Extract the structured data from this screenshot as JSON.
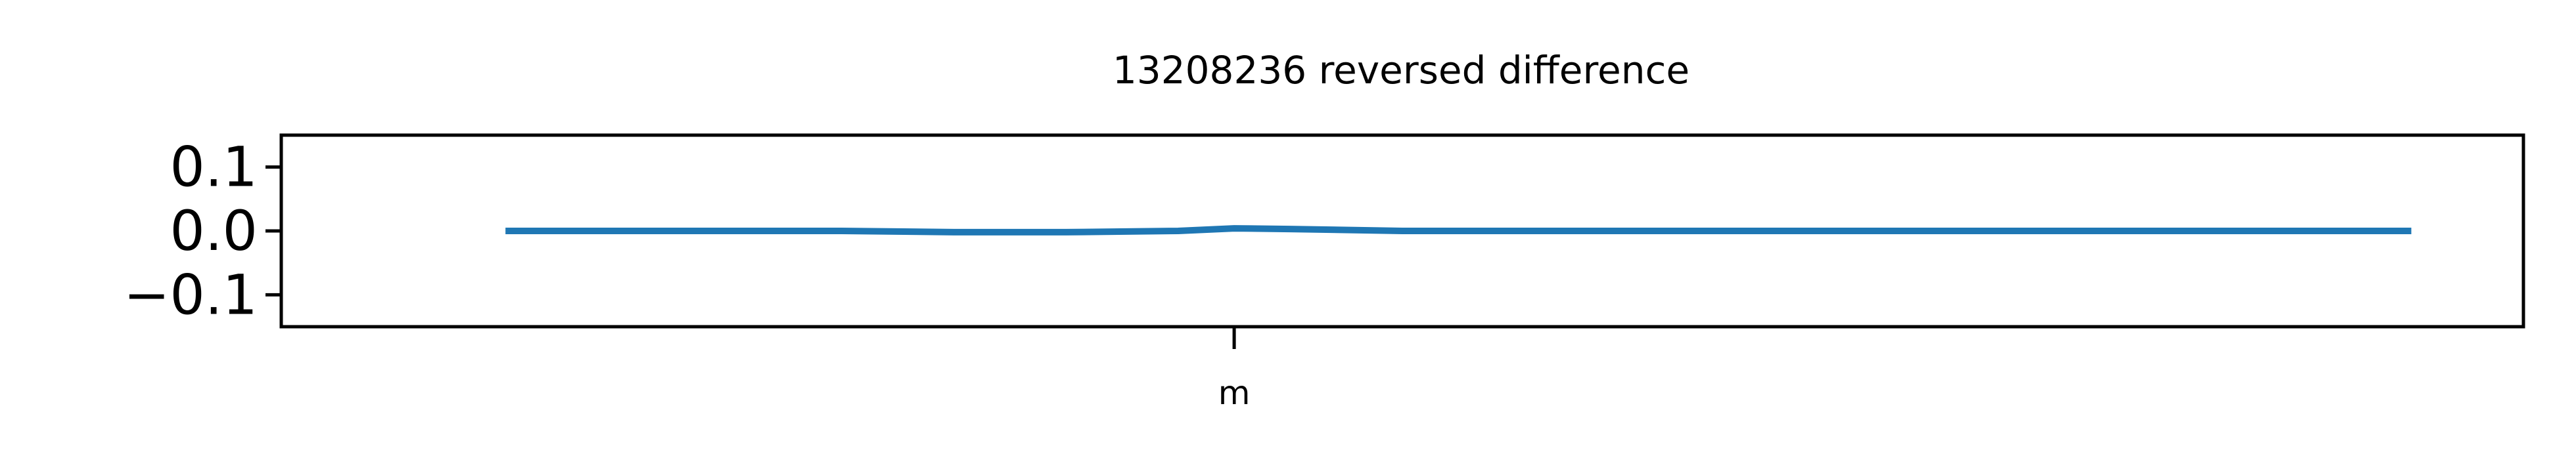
{
  "chart_data": {
    "type": "line",
    "title": "13208236 reversed difference",
    "xlabel": "",
    "ylabel": "",
    "ylim": [
      -0.15,
      0.15
    ],
    "yticks": [
      -0.1,
      0.0,
      0.1
    ],
    "ytick_labels": [
      "−0.1",
      "0.0",
      "0.1"
    ],
    "xlim": [
      0,
      100
    ],
    "xticks": [
      42.5
    ],
    "xtick_labels": [
      "m"
    ],
    "grid": false,
    "line_color": "#1f77b4",
    "series": [
      {
        "x": [
          10,
          15,
          20,
          25,
          30,
          35,
          40,
          42.5,
          45,
          50,
          55,
          60,
          65,
          70,
          75,
          80,
          85,
          90,
          95
        ],
        "y": [
          0.0,
          0.0,
          0.0,
          0.0,
          -0.002,
          -0.002,
          0.0,
          0.004,
          0.003,
          0.0,
          0.0,
          0.0,
          0.0,
          0.0,
          0.0,
          0.0,
          0.0,
          0.0,
          0.0
        ]
      }
    ]
  }
}
